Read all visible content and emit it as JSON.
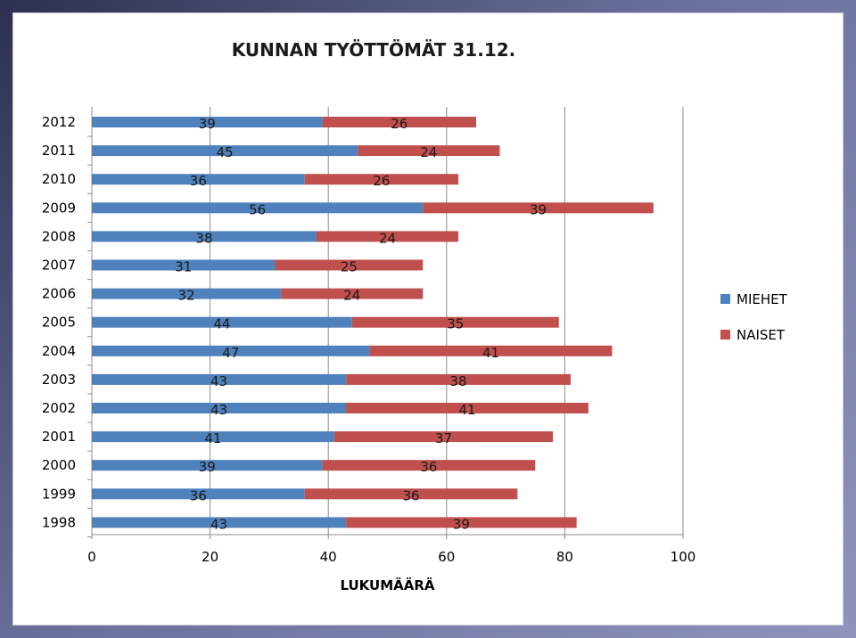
{
  "chart_data": {
    "type": "bar",
    "orientation": "horizontal",
    "stacked": true,
    "title": "KUNNAN TYÖTTÖMÄT 31.12.",
    "xlabel": "LUKUMÄÄRÄ",
    "ylabel": "",
    "xlim": [
      0,
      100
    ],
    "xticks": [
      "0",
      "20",
      "40",
      "60",
      "80",
      "100"
    ],
    "grid": "vertical major gridlines",
    "legend_position": "right",
    "categories": [
      "2012",
      "2011",
      "2010",
      "2009",
      "2008",
      "2007",
      "2006",
      "2005",
      "2004",
      "2003",
      "2002",
      "2001",
      "2000",
      "1999",
      "1998"
    ],
    "series": [
      {
        "name": "MIEHET",
        "color": "#4f81bd",
        "values": [
          39,
          45,
          36,
          56,
          38,
          31,
          32,
          44,
          47,
          43,
          43,
          41,
          39,
          36,
          43
        ]
      },
      {
        "name": "NAISET",
        "color": "#c0504d",
        "values": [
          26,
          24,
          26,
          39,
          24,
          25,
          24,
          35,
          41,
          38,
          41,
          37,
          36,
          36,
          39
        ]
      }
    ]
  }
}
